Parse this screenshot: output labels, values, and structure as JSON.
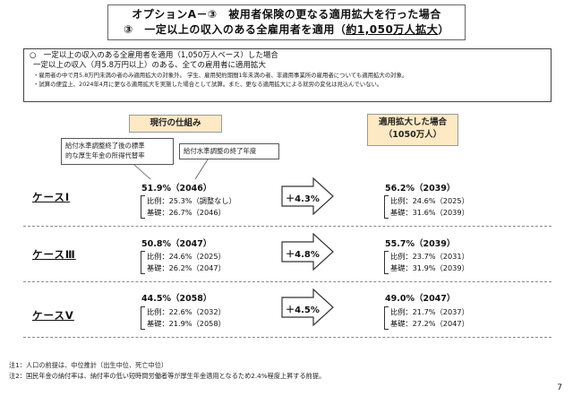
{
  "title": {
    "line1": "オプションA－③　被用者保険の更なる適用拡大を行った場合",
    "line2_prefix": "③　一定以上の収入のある全雇用者を適用（",
    "line2_emph": "約1,050万人拡大",
    "line2_suffix": "）"
  },
  "conditions": {
    "line1": "○　一定以上の収入のある全雇用者を適用（1,050万人ベース）した場合",
    "line2": "一定以上の収入（月5.8万円以上）のある、全ての雇用者に適用拡大",
    "note1": "・雇用者の中で月5.8万円未満の者のみ適用拡大の対象外。 学生、雇用契約期間1年未満の者、非適用事業所の雇用者についても適用拡大の対象。",
    "note2": "・試算の便宜上、2024年4月に更なる適用拡大を実施した場合として試算。また、更なる適用拡大による就労の変化は見込んでいない。"
  },
  "headers": {
    "current": "現行の仕組み",
    "expanded_line1": "適用拡大した場合",
    "expanded_line2": "（1050万人）"
  },
  "callouts": {
    "rate_line1": "給付水準調整終了後の標準",
    "rate_line2": "的な厚生年金の所得代替率",
    "end_year": "給付水準調整の終了年度"
  },
  "cases": [
    {
      "label": "ケースⅠ",
      "current": {
        "main": "51.9%（2046）",
        "hirei": "比例：25.3%（調整なし）",
        "kiso": "基礎：26.7%（2046）"
      },
      "delta": "＋4.3%",
      "expanded": {
        "main": "56.2%（2039）",
        "hirei": "比例：24.6%（2025）",
        "kiso": "基礎：31.6%（2039）"
      }
    },
    {
      "label": "ケースⅢ",
      "current": {
        "main": "50.8%（2047）",
        "hirei": "比例：24.6%（2025）",
        "kiso": "基礎：26.2%（2047）"
      },
      "delta": "＋4.8%",
      "expanded": {
        "main": "55.7%（2039）",
        "hirei": "比例：23.7%（2031）",
        "kiso": "基礎：31.9%（2039）"
      }
    },
    {
      "label": "ケースⅤ",
      "current": {
        "main": "44.5%（2058）",
        "hirei": "比例：22.6%（2032）",
        "kiso": "基礎：21.9%（2058）"
      },
      "delta": "＋4.5%",
      "expanded": {
        "main": "49.0%（2047）",
        "hirei": "比例：21.7%（2037）",
        "kiso": "基礎：27.2%（2047）"
      }
    }
  ],
  "notes": {
    "note1": "注1：人口の前提は、中位推計（出生中位、死亡中位）",
    "note2": "注2：国民年金の納付率は、納付率の低い短時間労働者等が厚生年金適用となるため2.4%程度上昇する前提。"
  },
  "page_number": "7",
  "colors": {
    "header_fill": "#fde9c4",
    "arrow_fill": "#ffffff",
    "arrow_stroke": "#333333"
  }
}
